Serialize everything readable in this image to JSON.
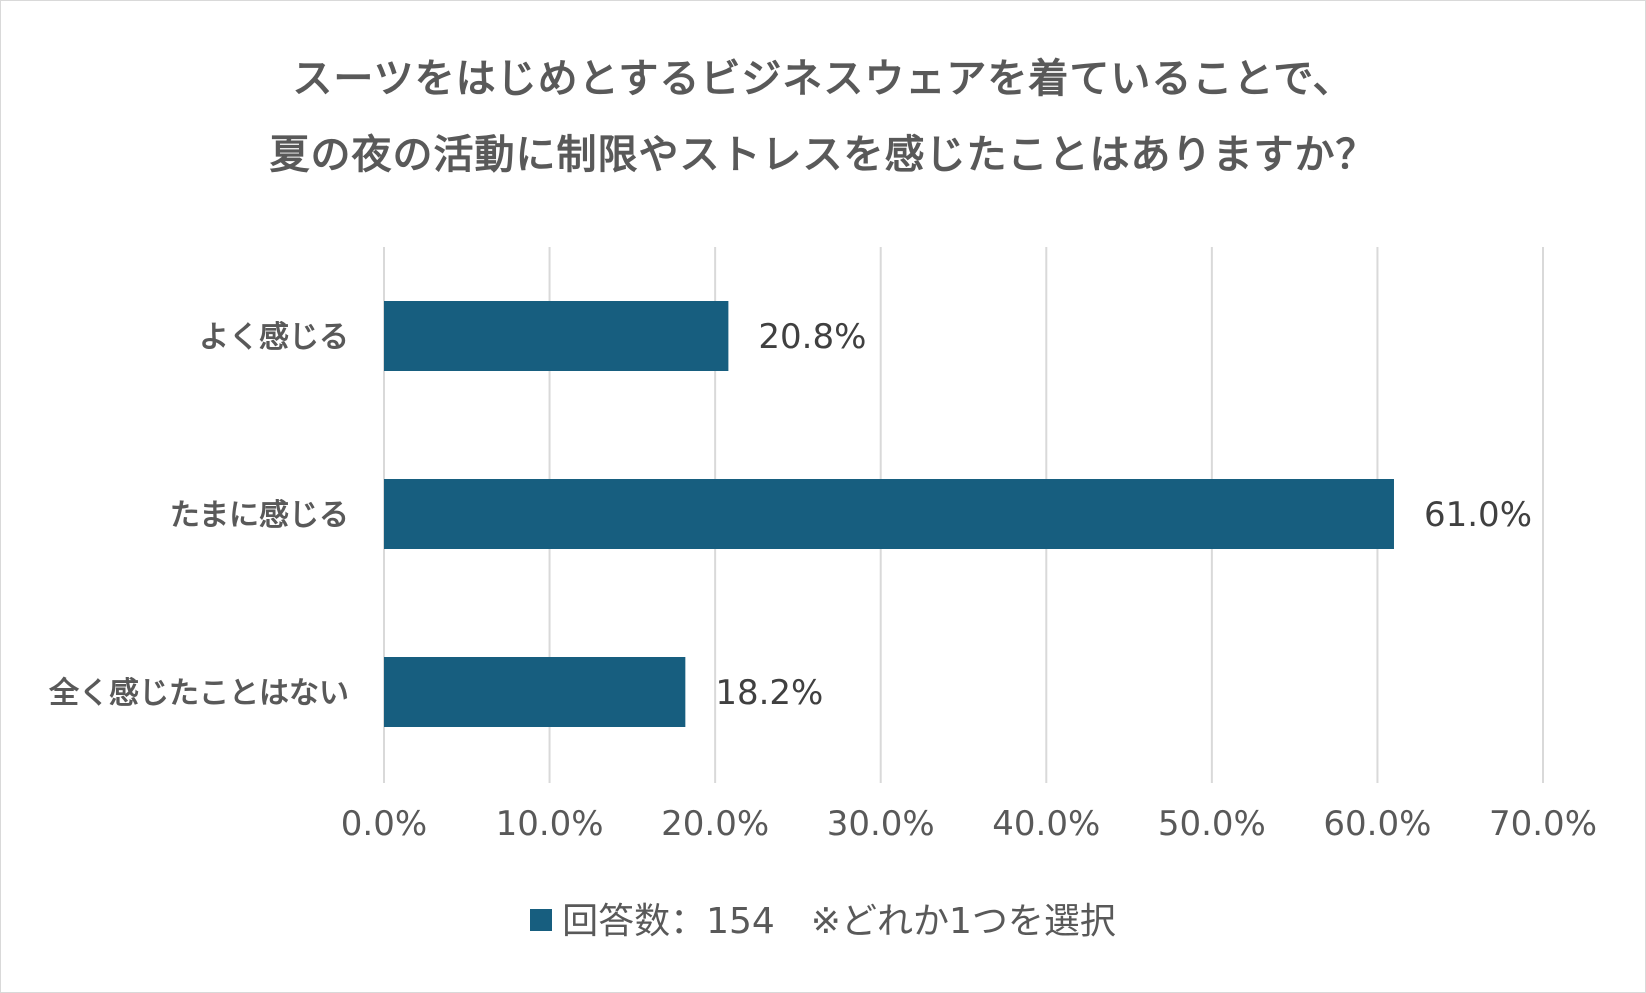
{
  "chart_data": {
    "type": "bar",
    "orientation": "horizontal",
    "title_lines": [
      "スーツをはじめとするビジネスウェアを着ていることで、",
      "夏の夜の活動に制限やストレスを感じたことはありますか？"
    ],
    "categories": [
      "よく感じる",
      "たまに感じる",
      "全く感じたことはない"
    ],
    "series": [
      {
        "name": "回答数：154　※どれか1つを選択",
        "values": [
          20.8,
          61.0,
          18.2
        ],
        "data_labels": [
          "20.8%",
          "61.0%",
          "18.2%"
        ],
        "color": "#175e7f"
      }
    ],
    "xlim": [
      0,
      70
    ],
    "x_ticks": [
      0,
      10,
      20,
      30,
      40,
      50,
      60,
      70
    ],
    "x_tick_labels": [
      "0.0%",
      "10.0%",
      "20.0%",
      "30.0%",
      "40.0%",
      "50.0%",
      "60.0%",
      "70.0%"
    ],
    "grid": true,
    "gridline_color": "#d9d9d9",
    "legend_position": "bottom"
  }
}
